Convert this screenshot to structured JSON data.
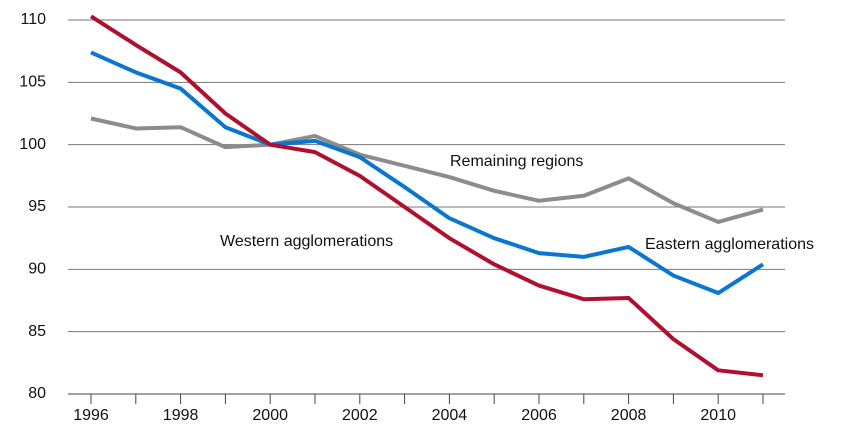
{
  "chart_data": {
    "type": "line",
    "x": [
      1996,
      1997,
      1998,
      1999,
      2000,
      2001,
      2002,
      2003,
      2004,
      2005,
      2006,
      2007,
      2008,
      2009,
      2010,
      2011
    ],
    "series": [
      {
        "name": "Western agglomerations",
        "color": "#b0102e",
        "values": [
          110.3,
          108.0,
          105.8,
          102.5,
          100,
          99.4,
          97.5,
          95.0,
          92.5,
          90.4,
          88.7,
          87.6,
          87.7,
          84.4,
          81.9,
          81.5
        ]
      },
      {
        "name": "Eastern agglomerations",
        "color": "#0a76cf",
        "values": [
          107.4,
          105.8,
          104.5,
          101.4,
          100,
          100.3,
          99.0,
          96.6,
          94.1,
          92.5,
          91.3,
          91.0,
          91.8,
          89.5,
          88.1,
          90.4
        ]
      },
      {
        "name": "Remaining regions",
        "color": "#8c8c8c",
        "values": [
          102.1,
          101.3,
          101.4,
          99.8,
          100,
          100.7,
          99.2,
          98.3,
          97.4,
          96.3,
          95.5,
          95.9,
          97.3,
          95.3,
          93.8,
          94.8
        ]
      }
    ],
    "xlim": [
      1996,
      2011
    ],
    "xticks": [
      1996,
      1998,
      2000,
      2002,
      2004,
      2006,
      2008,
      2010
    ],
    "ylim": [
      80,
      110
    ],
    "yticks": [
      80,
      85,
      90,
      95,
      100,
      105,
      110
    ],
    "grid": true
  }
}
